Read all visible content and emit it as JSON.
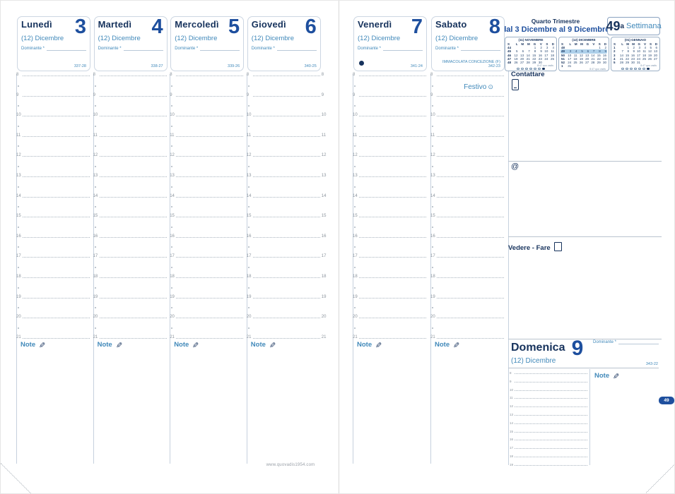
{
  "colors": {
    "navy": "#16325c",
    "accent_blue": "#1e4f9e",
    "light_blue": "#4189ba",
    "grid_gray": "#a9b4bf",
    "highlight_row": "#aed0ea"
  },
  "page": {
    "week_tab": "49",
    "website": "www.quovadis1954.com"
  },
  "labels": {
    "dominante": "Dominante *",
    "note": "Note",
    "at": "@"
  },
  "quarter": {
    "title": "Quarto Trimestre",
    "range": "dal 3 Dicembre al 9 Dicembre",
    "week_number": "49",
    "week_suffix": "a",
    "week_label": "Settimana"
  },
  "sections": {
    "contattare": "Contattare",
    "vedere_fare": "Vedere - Fare"
  },
  "hours": [
    "8",
    "9",
    "10",
    "11",
    "12",
    "13",
    "14",
    "15",
    "16",
    "17",
    "18",
    "19",
    "20",
    "21"
  ],
  "days": [
    {
      "name": "Lunedì",
      "month": "(12) Dicembre",
      "number": "3",
      "day_count": "337-28"
    },
    {
      "name": "Martedì",
      "month": "(12) Dicembre",
      "number": "4",
      "day_count": "338-27"
    },
    {
      "name": "Mercoledì",
      "month": "(12) Dicembre",
      "number": "5",
      "day_count": "339-26"
    },
    {
      "name": "Giovedì",
      "month": "(12) Dicembre",
      "number": "6",
      "day_count": "340-25"
    },
    {
      "name": "Venerdì",
      "month": "(12) Dicembre",
      "number": "7",
      "day_count": "341-24",
      "moon_dot": true
    },
    {
      "name": "Sabato",
      "month": "(12) Dicembre",
      "number": "8",
      "day_count": "342-23",
      "holiday": "IMMACOLATA CONCEZIONE (f)",
      "festivo": "Festivo"
    }
  ],
  "sunday": {
    "name": "Domenica",
    "month": "(12) Dicembre",
    "number": "9",
    "day_count": "343-22",
    "hours": [
      "8",
      "9",
      "10",
      "11",
      "12",
      "13",
      "14",
      "15",
      "16",
      "17",
      "18",
      "19"
    ]
  },
  "calendars": [
    {
      "title": "(11) NOVEMBRE",
      "week_header": "S",
      "day_headers": [
        "L",
        "M",
        "M",
        "G",
        "V",
        "S",
        "D"
      ],
      "footer": "8:47 quo vadis",
      "weeks": [
        {
          "n": "44",
          "d": [
            "",
            "",
            "",
            "1",
            "2",
            "3",
            "4"
          ]
        },
        {
          "n": "45",
          "d": [
            "5",
            "6",
            "7",
            "8",
            "9",
            "10",
            "11"
          ]
        },
        {
          "n": "46",
          "d": [
            "12",
            "13",
            "14",
            "15",
            "16",
            "17",
            "18"
          ]
        },
        {
          "n": "47",
          "d": [
            "19",
            "20",
            "21",
            "22",
            "23",
            "24",
            "25"
          ]
        },
        {
          "n": "48",
          "d": [
            "26",
            "27",
            "28",
            "29",
            "30",
            "",
            ""
          ]
        }
      ]
    },
    {
      "title": "(12) DICEMBRE",
      "week_header": "S",
      "day_headers": [
        "L",
        "M",
        "M",
        "G",
        "V",
        "S",
        "D"
      ],
      "footer": "8:47 quo vadis",
      "highlight_week": "49",
      "weeks": [
        {
          "n": "48",
          "d": [
            "",
            "",
            "",
            "",
            "",
            "1",
            "2"
          ]
        },
        {
          "n": "49",
          "d": [
            "3",
            "4",
            "5",
            "6",
            "7",
            "8",
            "9"
          ]
        },
        {
          "n": "50",
          "d": [
            "10",
            "11",
            "12",
            "13",
            "14",
            "15",
            "16"
          ]
        },
        {
          "n": "51",
          "d": [
            "17",
            "18",
            "19",
            "20",
            "21",
            "22",
            "23"
          ]
        },
        {
          "n": "52",
          "d": [
            "24",
            "25",
            "26",
            "27",
            "28",
            "29",
            "30"
          ]
        },
        {
          "n": "1",
          "d": [
            "31",
            "",
            "",
            "",
            "",
            "",
            ""
          ]
        }
      ]
    },
    {
      "title": "(01) GENNAIO",
      "week_header": "S",
      "day_headers": [
        "L",
        "M",
        "M",
        "G",
        "V",
        "S",
        "D"
      ],
      "footer": "8:47 quo vadis",
      "weeks": [
        {
          "n": "1",
          "d": [
            "",
            "1",
            "2",
            "3",
            "4",
            "5",
            "6"
          ]
        },
        {
          "n": "2",
          "d": [
            "7",
            "8",
            "9",
            "10",
            "11",
            "12",
            "13"
          ]
        },
        {
          "n": "3",
          "d": [
            "14",
            "15",
            "16",
            "17",
            "18",
            "19",
            "20"
          ]
        },
        {
          "n": "4",
          "d": [
            "21",
            "22",
            "23",
            "24",
            "25",
            "26",
            "27"
          ]
        },
        {
          "n": "5",
          "d": [
            "28",
            "29",
            "30",
            "31",
            "",
            "",
            ""
          ]
        }
      ]
    }
  ]
}
